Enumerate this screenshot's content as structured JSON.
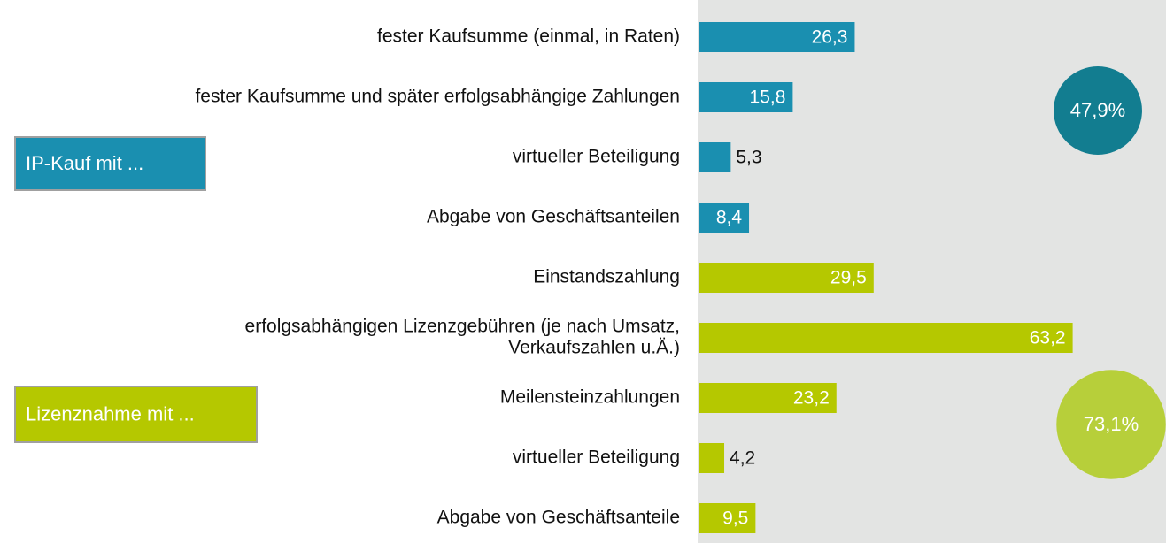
{
  "chart_data": {
    "type": "bar",
    "xlim": [
      0,
      79
    ],
    "groups": [
      {
        "name": "IP-Kauf mit ...",
        "color": "#1a8fb0",
        "total": 47.9,
        "total_label": "47,9%",
        "total_color": "#127d90",
        "categories": [
          "fester Kaufsumme (einmal, in Raten)",
          "fester Kaufsumme und später erfolgsabhängige Zahlungen",
          "virtueller Beteiligung",
          "Abgabe von Geschäftsanteilen"
        ],
        "values": [
          26.3,
          15.8,
          5.3,
          8.4
        ],
        "value_labels": [
          "26,3",
          "15,8",
          "5,3",
          "8,4"
        ]
      },
      {
        "name": "Lizenznahme mit ...",
        "color": "#b5c800",
        "total": 73.1,
        "total_label": "73,1%",
        "total_color": "#b7cf3a",
        "categories": [
          "Einstandszahlung",
          [
            "erfolgsabhängigen Lizenzgebühren (je nach Umsatz,",
            "Verkaufszahlen u.Ä.)"
          ],
          "Meilensteinzahlungen",
          "virtueller Beteiligung",
          "Abgabe von Geschäftsanteile"
        ],
        "values": [
          29.5,
          63.2,
          23.2,
          4.2,
          9.5
        ],
        "value_labels": [
          "29,5",
          "63,2",
          "23,2",
          "4,2",
          "9,5"
        ]
      }
    ]
  }
}
